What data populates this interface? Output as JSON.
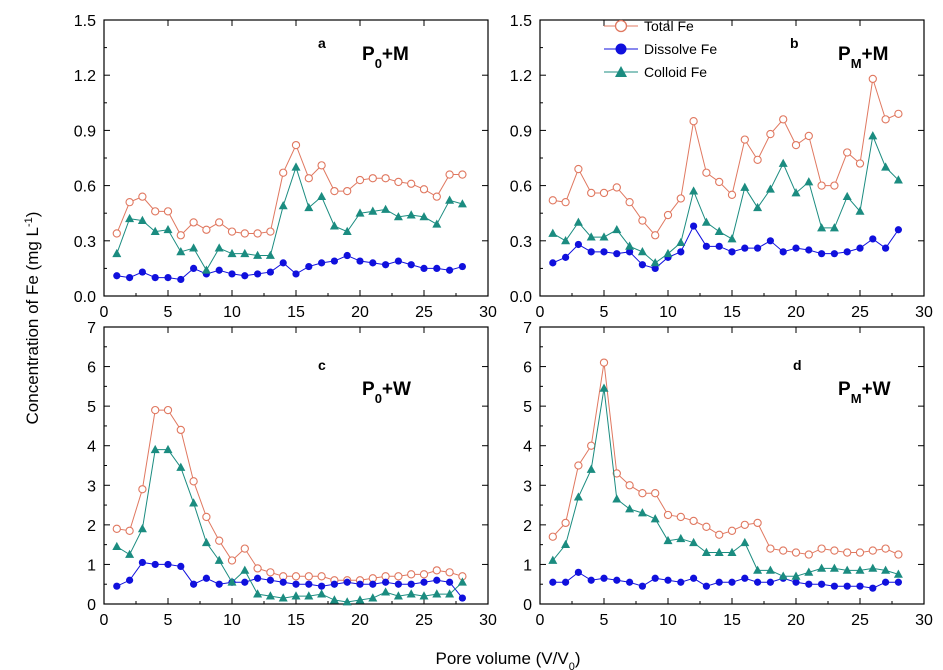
{
  "figure": {
    "ylabel": "Concentration of Fe (mg L",
    "ylabel_sup": "-1",
    "ylabel_tail": ")",
    "xlabel": "Pore  volume (V/V",
    "xlabel_sub": "0",
    "xlabel_tail": ")"
  },
  "legend": {
    "placement": "top of panel b",
    "entries": [
      "Total Fe",
      "Dissolve Fe",
      "Colloid Fe"
    ]
  },
  "colors": {
    "total": "#e07860",
    "dissolved": "#1010dd",
    "colloid": "#1b8c80"
  },
  "chart_data": [
    {
      "type": "line",
      "panel": "a",
      "title_main": "P",
      "title_sub": "0",
      "title_rest": "+M",
      "xlim": [
        0,
        30
      ],
      "ylim": [
        0,
        1.5
      ],
      "xticks": [
        "0",
        "5",
        "10",
        "15",
        "20",
        "25",
        "30"
      ],
      "yticks": [
        "0.0",
        "0.3",
        "0.6",
        "0.9",
        "1.2",
        "1.5"
      ],
      "x": [
        1,
        2,
        3,
        4,
        5,
        6,
        7,
        8,
        9,
        10,
        11,
        12,
        13,
        14,
        15,
        16,
        17,
        18,
        19,
        20,
        21,
        22,
        23,
        24,
        25,
        26,
        27,
        28
      ],
      "series": [
        {
          "name": "Total Fe",
          "values": [
            0.34,
            0.51,
            0.54,
            0.46,
            0.46,
            0.33,
            0.4,
            0.36,
            0.4,
            0.35,
            0.34,
            0.34,
            0.35,
            0.67,
            0.82,
            0.64,
            0.71,
            0.57,
            0.57,
            0.63,
            0.64,
            0.64,
            0.62,
            0.61,
            0.58,
            0.54,
            0.66,
            0.66
          ]
        },
        {
          "name": "Dissolve Fe",
          "values": [
            0.11,
            0.1,
            0.13,
            0.1,
            0.1,
            0.09,
            0.15,
            0.12,
            0.14,
            0.12,
            0.11,
            0.12,
            0.13,
            0.18,
            0.12,
            0.16,
            0.18,
            0.19,
            0.22,
            0.19,
            0.18,
            0.17,
            0.19,
            0.17,
            0.15,
            0.15,
            0.14,
            0.16
          ]
        },
        {
          "name": "Colloid Fe",
          "values": [
            0.23,
            0.42,
            0.41,
            0.35,
            0.36,
            0.24,
            0.26,
            0.14,
            0.26,
            0.23,
            0.23,
            0.22,
            0.22,
            0.49,
            0.7,
            0.48,
            0.54,
            0.38,
            0.35,
            0.45,
            0.46,
            0.47,
            0.43,
            0.44,
            0.43,
            0.39,
            0.52,
            0.5
          ]
        }
      ]
    },
    {
      "type": "line",
      "panel": "b",
      "title_main": "P",
      "title_sub": "M",
      "title_rest": "+M",
      "xlim": [
        0,
        30
      ],
      "ylim": [
        0,
        1.5
      ],
      "xticks": [
        "0",
        "5",
        "10",
        "15",
        "20",
        "25",
        "30"
      ],
      "yticks": [
        "0.0",
        "0.3",
        "0.6",
        "0.9",
        "1.2",
        "1.5"
      ],
      "x": [
        1,
        2,
        3,
        4,
        5,
        6,
        7,
        8,
        9,
        10,
        11,
        12,
        13,
        14,
        15,
        16,
        17,
        18,
        19,
        20,
        21,
        22,
        23,
        24,
        25,
        26,
        27,
        28
      ],
      "series": [
        {
          "name": "Total Fe",
          "values": [
            0.52,
            0.51,
            0.69,
            0.56,
            0.56,
            0.59,
            0.51,
            0.41,
            0.33,
            0.44,
            0.53,
            0.95,
            0.67,
            0.62,
            0.55,
            0.85,
            0.74,
            0.88,
            0.96,
            0.82,
            0.87,
            0.6,
            0.6,
            0.78,
            0.72,
            1.18,
            0.96,
            0.99
          ]
        },
        {
          "name": "Dissolve Fe",
          "values": [
            0.18,
            0.21,
            0.28,
            0.24,
            0.24,
            0.23,
            0.24,
            0.17,
            0.15,
            0.21,
            0.24,
            0.38,
            0.27,
            0.27,
            0.24,
            0.26,
            0.26,
            0.3,
            0.24,
            0.26,
            0.25,
            0.23,
            0.23,
            0.24,
            0.26,
            0.31,
            0.26,
            0.36
          ]
        },
        {
          "name": "Colloid Fe",
          "values": [
            0.34,
            0.3,
            0.4,
            0.32,
            0.32,
            0.36,
            0.27,
            0.24,
            0.18,
            0.23,
            0.29,
            0.57,
            0.4,
            0.35,
            0.31,
            0.59,
            0.48,
            0.58,
            0.72,
            0.56,
            0.62,
            0.37,
            0.37,
            0.54,
            0.46,
            0.87,
            0.7,
            0.63
          ]
        }
      ]
    },
    {
      "type": "line",
      "panel": "c",
      "title_main": "P",
      "title_sub": "0",
      "title_rest": "+W",
      "xlim": [
        0,
        30
      ],
      "ylim": [
        0,
        7
      ],
      "xticks": [
        "0",
        "5",
        "10",
        "15",
        "20",
        "25",
        "30"
      ],
      "yticks": [
        "0",
        "1",
        "2",
        "3",
        "4",
        "5",
        "6",
        "7"
      ],
      "x": [
        1,
        2,
        3,
        4,
        5,
        6,
        7,
        8,
        9,
        10,
        11,
        12,
        13,
        14,
        15,
        16,
        17,
        18,
        19,
        20,
        21,
        22,
        23,
        24,
        25,
        26,
        27,
        28
      ],
      "series": [
        {
          "name": "Total Fe",
          "values": [
            1.9,
            1.85,
            2.9,
            4.9,
            4.9,
            4.4,
            3.1,
            2.2,
            1.6,
            1.1,
            1.4,
            0.9,
            0.8,
            0.7,
            0.7,
            0.7,
            0.7,
            0.6,
            0.6,
            0.6,
            0.65,
            0.7,
            0.7,
            0.75,
            0.75,
            0.85,
            0.8,
            0.7
          ]
        },
        {
          "name": "Dissolve Fe",
          "values": [
            0.45,
            0.6,
            1.05,
            1.0,
            1.0,
            0.95,
            0.5,
            0.65,
            0.5,
            0.55,
            0.55,
            0.65,
            0.6,
            0.55,
            0.5,
            0.5,
            0.45,
            0.5,
            0.55,
            0.5,
            0.5,
            0.55,
            0.5,
            0.5,
            0.55,
            0.6,
            0.55,
            0.15
          ]
        },
        {
          "name": "Colloid Fe",
          "values": [
            1.45,
            1.25,
            1.9,
            3.9,
            3.9,
            3.45,
            2.55,
            1.55,
            1.1,
            0.55,
            0.85,
            0.25,
            0.2,
            0.15,
            0.2,
            0.2,
            0.25,
            0.1,
            0.05,
            0.1,
            0.15,
            0.3,
            0.2,
            0.25,
            0.2,
            0.25,
            0.25,
            0.55
          ]
        }
      ]
    },
    {
      "type": "line",
      "panel": "d",
      "title_main": "P",
      "title_sub": "M",
      "title_rest": "+W",
      "xlim": [
        0,
        30
      ],
      "ylim": [
        0,
        7
      ],
      "xticks": [
        "0",
        "5",
        "10",
        "15",
        "20",
        "25",
        "30"
      ],
      "yticks": [
        "0",
        "1",
        "2",
        "3",
        "4",
        "5",
        "6",
        "7"
      ],
      "x": [
        1,
        2,
        3,
        4,
        5,
        6,
        7,
        8,
        9,
        10,
        11,
        12,
        13,
        14,
        15,
        16,
        17,
        18,
        19,
        20,
        21,
        22,
        23,
        24,
        25,
        26,
        27,
        28
      ],
      "series": [
        {
          "name": "Total Fe",
          "values": [
            1.7,
            2.05,
            3.5,
            4.0,
            6.1,
            3.3,
            3.0,
            2.8,
            2.8,
            2.25,
            2.2,
            2.1,
            1.95,
            1.75,
            1.85,
            2.0,
            2.05,
            1.4,
            1.35,
            1.3,
            1.25,
            1.4,
            1.35,
            1.3,
            1.3,
            1.35,
            1.4,
            1.25
          ]
        },
        {
          "name": "Dissolve Fe",
          "values": [
            0.55,
            0.55,
            0.8,
            0.6,
            0.65,
            0.6,
            0.55,
            0.45,
            0.65,
            0.6,
            0.55,
            0.65,
            0.45,
            0.55,
            0.55,
            0.65,
            0.55,
            0.55,
            0.65,
            0.55,
            0.5,
            0.5,
            0.45,
            0.45,
            0.45,
            0.4,
            0.55,
            0.55
          ]
        },
        {
          "name": "Colloid Fe",
          "values": [
            1.1,
            1.5,
            2.7,
            3.4,
            5.45,
            2.65,
            2.4,
            2.3,
            2.15,
            1.6,
            1.65,
            1.55,
            1.3,
            1.3,
            1.3,
            1.55,
            0.85,
            0.85,
            0.7,
            0.7,
            0.8,
            0.9,
            0.9,
            0.85,
            0.85,
            0.9,
            0.85,
            0.75
          ]
        }
      ]
    }
  ]
}
